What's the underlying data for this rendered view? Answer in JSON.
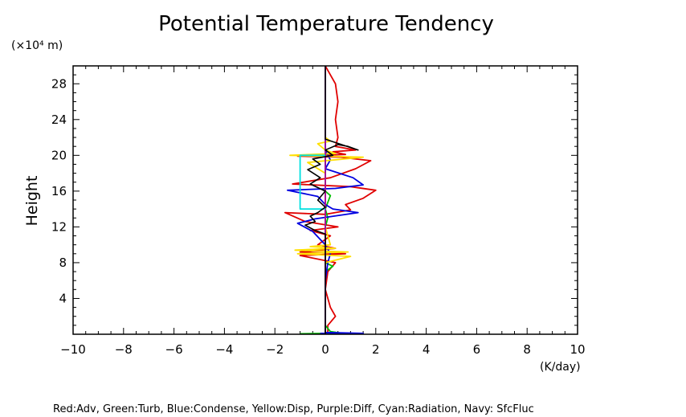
{
  "chart_data": {
    "type": "line",
    "title": "Potential Temperature Tendency",
    "ylabel": "Height",
    "y_unit": "(×10⁴ m)",
    "x_unit": "(K/day)",
    "xlim": [
      -10,
      10
    ],
    "ylim": [
      0,
      30
    ],
    "x_ticks": [
      "−10",
      "−8",
      "−6",
      "−4",
      "−2",
      "0",
      "2",
      "4",
      "6",
      "8",
      "10"
    ],
    "y_ticks": [
      "4",
      "8",
      "12",
      "16",
      "20",
      "24",
      "28"
    ],
    "grid": false,
    "legend_text": "Red:Adv, Green:Turb, Blue:Condense, Yellow:Disp, Purple:Diff, Cyan:Radiation, Navy: SfcFluc",
    "series": [
      {
        "name": "Red:Adv",
        "color": "#e00000",
        "points": [
          [
            0.1,
            0
          ],
          [
            0.1,
            1
          ],
          [
            0.4,
            2
          ],
          [
            0.2,
            3
          ],
          [
            0,
            5
          ],
          [
            0.1,
            7
          ],
          [
            0.4,
            8
          ],
          [
            -1.0,
            8.8
          ],
          [
            0.8,
            9
          ],
          [
            -1.0,
            9.2
          ],
          [
            0.4,
            9.6
          ],
          [
            -0.3,
            10
          ],
          [
            0.2,
            11
          ],
          [
            -0.6,
            11.6
          ],
          [
            0.5,
            12
          ],
          [
            -0.8,
            12.6
          ],
          [
            -1.6,
            13.6
          ],
          [
            0,
            13.4
          ],
          [
            1.0,
            13.9
          ],
          [
            0.8,
            14.5
          ],
          [
            1.5,
            15.2
          ],
          [
            2.0,
            16.1
          ],
          [
            1.0,
            16.5
          ],
          [
            -1.3,
            16.8
          ],
          [
            0.2,
            17.5
          ],
          [
            1.2,
            18.5
          ],
          [
            1.8,
            19.4
          ],
          [
            0.6,
            19.8
          ],
          [
            -1.1,
            19.9
          ],
          [
            0.8,
            20.1
          ],
          [
            0.3,
            20.4
          ],
          [
            1.2,
            20.6
          ],
          [
            0.4,
            21
          ],
          [
            0.5,
            22
          ],
          [
            0.4,
            24
          ],
          [
            0.5,
            26
          ],
          [
            0.4,
            28
          ],
          [
            0.1,
            29.5
          ],
          [
            0,
            30
          ]
        ]
      },
      {
        "name": "Green:Turb",
        "color": "#00c000",
        "points": [
          [
            -1.0,
            0.05
          ],
          [
            0,
            0.1
          ],
          [
            0.8,
            0.05
          ],
          [
            0.2,
            0.3
          ],
          [
            0,
            1
          ],
          [
            0,
            7
          ],
          [
            0.3,
            7.6
          ],
          [
            0,
            8
          ],
          [
            0,
            12
          ],
          [
            0.1,
            13
          ],
          [
            0,
            14
          ],
          [
            0.2,
            15.5
          ],
          [
            0,
            16
          ],
          [
            0,
            30
          ]
        ]
      },
      {
        "name": "Blue:Condense",
        "color": "#0000e0",
        "points": [
          [
            -0.2,
            0.1
          ],
          [
            1.5,
            0.1
          ],
          [
            0,
            0.2
          ],
          [
            0,
            6
          ],
          [
            0.1,
            8
          ],
          [
            0.2,
            9
          ],
          [
            0,
            10
          ],
          [
            -0.5,
            11.5
          ],
          [
            -1.1,
            12.4
          ],
          [
            -0.4,
            12.9
          ],
          [
            1.3,
            13.6
          ],
          [
            0.3,
            14
          ],
          [
            0,
            14.5
          ],
          [
            -0.3,
            15.4
          ],
          [
            -1.5,
            16.1
          ],
          [
            0.4,
            16.3
          ],
          [
            1.5,
            16.7
          ],
          [
            1.1,
            17.5
          ],
          [
            0,
            18.5
          ],
          [
            0.2,
            19.5
          ],
          [
            0,
            20.5
          ],
          [
            0,
            30
          ]
        ]
      },
      {
        "name": "Yellow:Disp",
        "color": "#ffe000",
        "points": [
          [
            0,
            8
          ],
          [
            1.0,
            8.7
          ],
          [
            -1.1,
            9
          ],
          [
            0.9,
            9.2
          ],
          [
            -1.2,
            9.4
          ],
          [
            0.4,
            9.6
          ],
          [
            -0.6,
            9.8
          ],
          [
            0.2,
            10
          ],
          [
            0,
            12
          ],
          [
            0,
            18
          ],
          [
            -0.7,
            19.2
          ],
          [
            1.5,
            19.8
          ],
          [
            -1.4,
            20
          ],
          [
            0.4,
            20.2
          ],
          [
            0,
            20.6
          ],
          [
            -0.3,
            21.3
          ],
          [
            0.2,
            21.6
          ],
          [
            0,
            22
          ]
        ]
      },
      {
        "name": "Purple:Diff",
        "color": "#a000a0",
        "points": [
          [
            0,
            0
          ],
          [
            0,
            30
          ]
        ]
      },
      {
        "name": "Cyan:Radiation",
        "color": "#00e0e0",
        "points": [
          [
            0,
            14
          ],
          [
            -1.0,
            14
          ],
          [
            -1.0,
            20
          ],
          [
            0,
            20
          ]
        ]
      },
      {
        "name": "Navy: SfcFluc",
        "color": "#000080",
        "points": [
          [
            0,
            0
          ],
          [
            0,
            1
          ]
        ]
      },
      {
        "name": "Black",
        "color": "#000000",
        "points": [
          [
            0,
            0
          ],
          [
            0,
            11.2
          ],
          [
            -0.4,
            11.6
          ],
          [
            -0.8,
            12.2
          ],
          [
            -0.4,
            12.6
          ],
          [
            -0.6,
            13.2
          ],
          [
            -0.3,
            13.6
          ],
          [
            0,
            14.2
          ],
          [
            -0.3,
            15
          ],
          [
            0,
            16
          ],
          [
            -0.6,
            16.8
          ],
          [
            -0.2,
            17.5
          ],
          [
            -0.7,
            18.4
          ],
          [
            -0.2,
            19
          ],
          [
            -0.5,
            19.6
          ],
          [
            0.3,
            20
          ],
          [
            0,
            20.6
          ],
          [
            0.5,
            21.2
          ],
          [
            0.9,
            21
          ],
          [
            1.3,
            20.6
          ],
          [
            0,
            21.8
          ],
          [
            0,
            30
          ]
        ]
      }
    ]
  }
}
